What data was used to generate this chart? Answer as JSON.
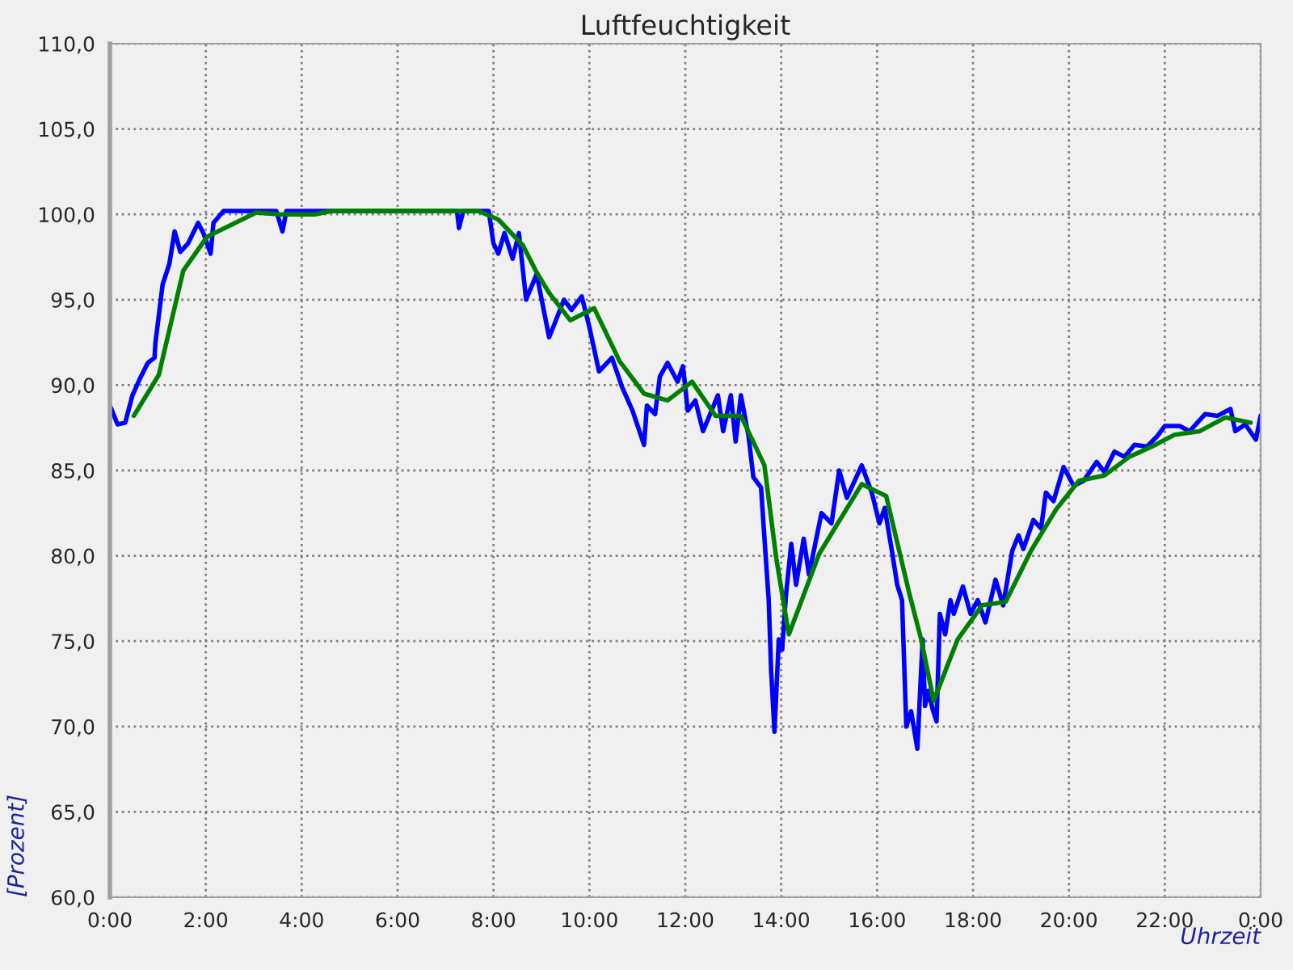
{
  "chart_data": {
    "type": "line",
    "title": "Luftfeuchtigkeit",
    "xlabel": "Uhrzeit",
    "ylabel": "[Prozent]",
    "xlim": [
      0,
      24
    ],
    "ylim": [
      60,
      110
    ],
    "xticks": [
      {
        "value": 0,
        "label": "0:00"
      },
      {
        "value": 2,
        "label": "2:00"
      },
      {
        "value": 4,
        "label": "4:00"
      },
      {
        "value": 6,
        "label": "6:00"
      },
      {
        "value": 8,
        "label": "8:00"
      },
      {
        "value": 10,
        "label": "10:00"
      },
      {
        "value": 12,
        "label": "12:00"
      },
      {
        "value": 14,
        "label": "14:00"
      },
      {
        "value": 16,
        "label": "16:00"
      },
      {
        "value": 18,
        "label": "18:00"
      },
      {
        "value": 20,
        "label": "20:00"
      },
      {
        "value": 22,
        "label": "22:00"
      },
      {
        "value": 24,
        "label": "0:00"
      }
    ],
    "yticks": [
      {
        "value": 60,
        "label": "60,0"
      },
      {
        "value": 65,
        "label": "65,0"
      },
      {
        "value": 70,
        "label": "70,0"
      },
      {
        "value": 75,
        "label": "75,0"
      },
      {
        "value": 80,
        "label": "80,0"
      },
      {
        "value": 85,
        "label": "85,0"
      },
      {
        "value": 90,
        "label": "90,0"
      },
      {
        "value": 95,
        "label": "95,0"
      },
      {
        "value": 100,
        "label": "100,0"
      },
      {
        "value": 105,
        "label": "105,0"
      },
      {
        "value": 110,
        "label": "110,0"
      }
    ],
    "grid": true,
    "legend": false,
    "marker": "none",
    "line_style": "solid",
    "series": [
      {
        "color": "#0000ff",
        "x": [
          0,
          0.16,
          0.32,
          0.47,
          0.63,
          0.79,
          0.93,
          0.95,
          1.03,
          1.1,
          1.24,
          1.35,
          1.47,
          1.63,
          1.84,
          1.95,
          2.1,
          2.16,
          2.37,
          2.53,
          3.47,
          3.6,
          3.68,
          7.24,
          7.28,
          7.37,
          7.9,
          8.0,
          8.1,
          8.23,
          8.4,
          8.53,
          8.68,
          8.9,
          9.16,
          9.26,
          9.47,
          9.63,
          9.84,
          10.0,
          10.2,
          10.47,
          10.68,
          10.9,
          11.14,
          11.2,
          11.37,
          11.47,
          11.63,
          11.84,
          11.95,
          12.0,
          12.05,
          12.21,
          12.37,
          12.68,
          12.79,
          12.95,
          13.05,
          13.16,
          13.32,
          13.42,
          13.58,
          13.63,
          13.74,
          13.79,
          13.86,
          13.95,
          14.02,
          14.1,
          14.21,
          14.31,
          14.47,
          14.58,
          14.84,
          15.05,
          15.21,
          15.37,
          15.68,
          15.89,
          16.05,
          16.16,
          16.32,
          16.42,
          16.52,
          16.61,
          16.71,
          16.84,
          16.95,
          17.0,
          17.07,
          17.16,
          17.24,
          17.31,
          17.42,
          17.53,
          17.6,
          17.79,
          17.95,
          18.1,
          18.26,
          18.47,
          18.63,
          18.82,
          18.95,
          19.05,
          19.26,
          19.42,
          19.52,
          19.68,
          19.89,
          20.1,
          20.31,
          20.58,
          20.74,
          20.95,
          21.16,
          21.37,
          21.63,
          21.84,
          22.0,
          22.31,
          22.52,
          22.84,
          23.1,
          23.37,
          23.47,
          23.68,
          23.9,
          24.0
        ],
        "values": [
          88.8,
          87.7,
          87.8,
          89.4,
          90.4,
          91.3,
          91.6,
          92.5,
          94.3,
          95.9,
          97.1,
          99.0,
          97.8,
          98.3,
          99.5,
          98.9,
          97.7,
          99.5,
          100.2,
          100.2,
          100.2,
          99.0,
          100.2,
          100.2,
          99.2,
          100.2,
          100.2,
          98.3,
          97.7,
          98.9,
          97.4,
          98.9,
          95.0,
          96.5,
          92.8,
          93.5,
          95.0,
          94.4,
          95.2,
          93.4,
          90.8,
          91.6,
          89.9,
          88.5,
          86.5,
          88.8,
          88.3,
          90.5,
          91.3,
          90.2,
          91.1,
          89.9,
          88.5,
          89.1,
          87.3,
          89.4,
          87.3,
          89.4,
          86.7,
          89.4,
          87.0,
          84.6,
          84.0,
          81.9,
          77.4,
          73.3,
          69.7,
          75.1,
          74.5,
          77.7,
          80.7,
          78.3,
          81.0,
          78.9,
          82.5,
          81.9,
          85.0,
          83.4,
          85.3,
          83.7,
          81.9,
          82.8,
          80.1,
          78.3,
          77.4,
          70.0,
          70.9,
          68.7,
          75.1,
          71.2,
          72.1,
          71.0,
          70.3,
          76.6,
          75.4,
          77.4,
          76.6,
          78.2,
          76.6,
          77.4,
          76.1,
          78.6,
          77.1,
          80.3,
          81.2,
          80.4,
          82.1,
          81.6,
          83.7,
          83.2,
          85.2,
          84.1,
          84.4,
          85.5,
          84.9,
          86.1,
          85.8,
          86.5,
          86.4,
          87.0,
          87.6,
          87.6,
          87.3,
          88.3,
          88.2,
          88.6,
          87.3,
          87.7,
          86.8,
          88.2
        ]
      },
      {
        "color": "#008000",
        "x": [
          0.5,
          1.02,
          1.53,
          2.03,
          3.05,
          3.56,
          4.27,
          4.63,
          7.68,
          8.1,
          8.61,
          8.9,
          9.16,
          9.6,
          10.1,
          10.63,
          11.14,
          11.63,
          12.14,
          12.63,
          13.16,
          13.65,
          13.9,
          14.16,
          14.79,
          15.68,
          16.19,
          16.68,
          16.92,
          17.18,
          17.68,
          18.19,
          18.68,
          19.21,
          19.73,
          20.21,
          20.74,
          21.26,
          21.73,
          22.21,
          22.73,
          23.26,
          23.79
        ],
        "values": [
          88.2,
          90.6,
          96.7,
          98.7,
          100.1,
          100.0,
          100.0,
          100.2,
          100.2,
          99.7,
          98.2,
          96.6,
          95.4,
          93.8,
          94.5,
          91.4,
          89.5,
          89.1,
          90.2,
          88.2,
          88.2,
          85.3,
          79.8,
          75.4,
          80.1,
          84.2,
          83.5,
          77.7,
          75.1,
          71.5,
          75.1,
          77.1,
          77.3,
          80.3,
          82.7,
          84.4,
          84.7,
          85.8,
          86.4,
          87.1,
          87.3,
          88.1,
          87.8
        ]
      }
    ]
  }
}
